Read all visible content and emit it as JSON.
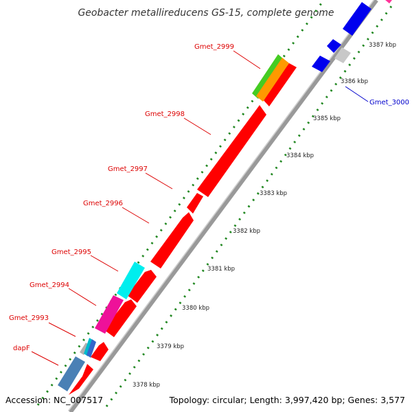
{
  "title": "Geobacter metallireducens GS-15, complete genome",
  "footer": {
    "accession": "Accession: NC_007517",
    "topology": "Topology: circular; Length: 3,997,420 bp; Genes: 3,577"
  },
  "colors": {
    "label_red": "#dd0000",
    "label_blue": "#0000cc",
    "backbone": "#999999",
    "tick_green": "#228822",
    "forward_gene": "#ff0000",
    "reverse_gene": "#0000ee"
  },
  "kbp_ticks": [
    {
      "label": "3378 kbp",
      "pos": 3378
    },
    {
      "label": "3379 kbp",
      "pos": 3379
    },
    {
      "label": "3380 kbp",
      "pos": 3380
    },
    {
      "label": "3381 kbp",
      "pos": 3381
    },
    {
      "label": "3382 kbp",
      "pos": 3382
    },
    {
      "label": "3383 kbp",
      "pos": 3383
    },
    {
      "label": "3384 kbp",
      "pos": 3384
    },
    {
      "label": "3385 kbp",
      "pos": 3385
    },
    {
      "label": "3386 kbp",
      "pos": 3386
    },
    {
      "label": "3387 kbp",
      "pos": 3387
    }
  ],
  "genes": [
    {
      "label": "dapF",
      "color": "#ff0000"
    },
    {
      "label": "Gmet_2993",
      "color": "#ff0000"
    },
    {
      "label": "Gmet_2994",
      "color": "#ff0000"
    },
    {
      "label": "Gmet_2995",
      "color": "#ff0000"
    },
    {
      "label": "Gmet_2996",
      "color": "#ff0000"
    },
    {
      "label": "Gmet_2997",
      "color": "#ff0000"
    },
    {
      "label": "Gmet_2998",
      "color": "#ff0000"
    },
    {
      "label": "Gmet_2999",
      "color": "#ff0000"
    },
    {
      "label": "Gmet_3000",
      "color": "#0000cc"
    }
  ]
}
